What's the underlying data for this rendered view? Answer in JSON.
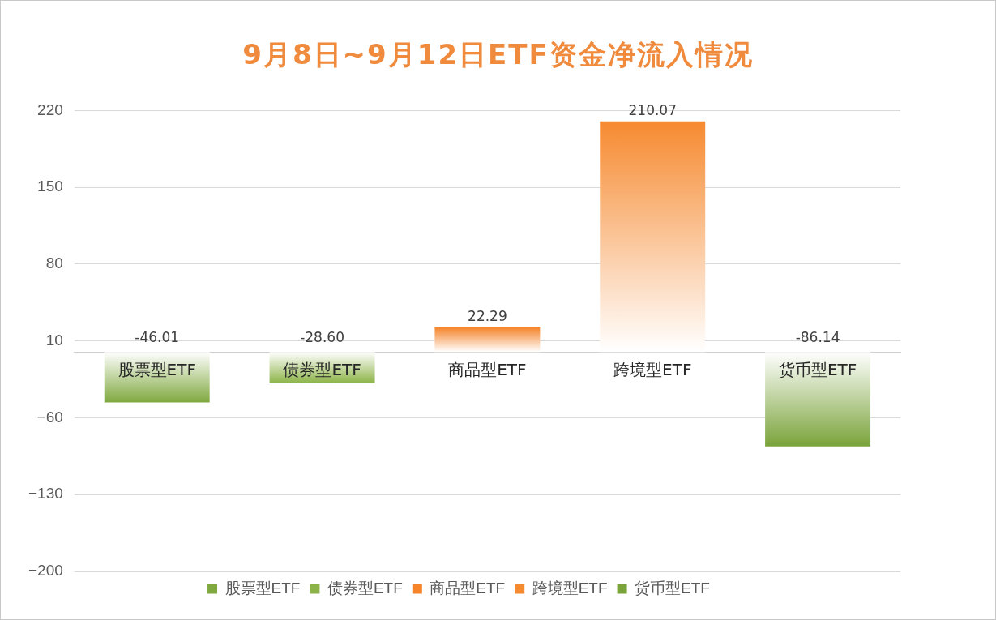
{
  "chart_data": {
    "type": "bar",
    "title": "9月8日~9月12日ETF资金净流入情况",
    "categories": [
      "股票型ETF",
      "债券型ETF",
      "商品型ETF",
      "跨境型ETF",
      "货币型ETF"
    ],
    "series": [
      {
        "name": "股票型ETF",
        "color": "#7fa83e",
        "values": [
          -46.01,
          null,
          null,
          null,
          null
        ],
        "value_labels": [
          "-46.01",
          null,
          null,
          null,
          null
        ]
      },
      {
        "name": "债券型ETF",
        "color": "#8cb347",
        "values": [
          null,
          -28.6,
          null,
          null,
          null
        ],
        "value_labels": [
          null,
          "-28.60",
          null,
          null,
          null
        ]
      },
      {
        "name": "商品型ETF",
        "color": "#f5842b",
        "values": [
          null,
          null,
          22.29,
          null,
          null
        ],
        "value_labels": [
          null,
          null,
          "22.29",
          null,
          null
        ]
      },
      {
        "name": "跨境型ETF",
        "color": "#f68a30",
        "values": [
          null,
          null,
          null,
          210.07,
          null
        ],
        "value_labels": [
          null,
          null,
          null,
          "210.07",
          null
        ]
      },
      {
        "name": "货币型ETF",
        "color": "#7aa33a",
        "values": [
          null,
          null,
          null,
          null,
          -86.14
        ],
        "value_labels": [
          null,
          null,
          null,
          null,
          "-86.14"
        ]
      }
    ],
    "ylim": [
      -200,
      220
    ],
    "yticks": [
      -200,
      -130,
      -60,
      10,
      80,
      150,
      220
    ],
    "grid": "y",
    "legend": "bottom"
  }
}
